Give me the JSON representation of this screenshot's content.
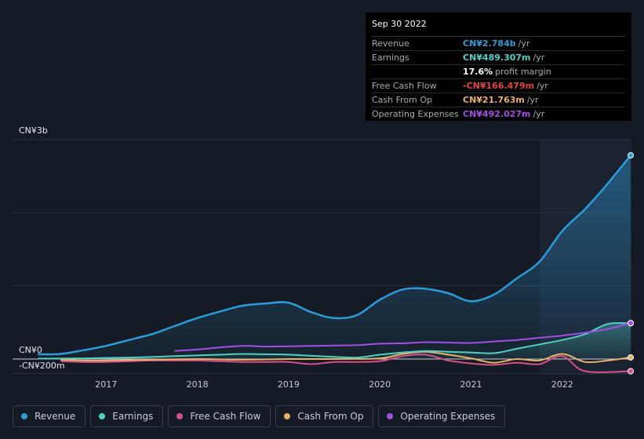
{
  "chart_data": {
    "type": "line",
    "x_tick_labels": [
      "2017",
      "2018",
      "2019",
      "2020",
      "2021",
      "2022"
    ],
    "y_tick_labels": [
      "CN¥3b",
      "CN¥0",
      "-CN¥200m"
    ],
    "ylim": [
      -200,
      3000
    ],
    "y_unit": "CN¥m",
    "legend_position": "bottom",
    "grid": true,
    "series": [
      {
        "name": "Revenue",
        "color": "#2d9cdb",
        "area": true,
        "points": [
          [
            2016.25,
            65
          ],
          [
            2016.5,
            70
          ],
          [
            2016.75,
            120
          ],
          [
            2017.0,
            180
          ],
          [
            2017.25,
            260
          ],
          [
            2017.5,
            340
          ],
          [
            2017.75,
            450
          ],
          [
            2018.0,
            560
          ],
          [
            2018.25,
            650
          ],
          [
            2018.5,
            730
          ],
          [
            2018.75,
            760
          ],
          [
            2019.0,
            770
          ],
          [
            2019.25,
            640
          ],
          [
            2019.5,
            560
          ],
          [
            2019.75,
            600
          ],
          [
            2020.0,
            810
          ],
          [
            2020.25,
            950
          ],
          [
            2020.5,
            960
          ],
          [
            2020.75,
            900
          ],
          [
            2021.0,
            790
          ],
          [
            2021.25,
            880
          ],
          [
            2021.5,
            1100
          ],
          [
            2021.75,
            1330
          ],
          [
            2022.0,
            1750
          ],
          [
            2022.25,
            2050
          ],
          [
            2022.5,
            2400
          ],
          [
            2022.75,
            2784
          ]
        ]
      },
      {
        "name": "Earnings",
        "color": "#4fd1c5",
        "area": true,
        "points": [
          [
            2016.25,
            5
          ],
          [
            2016.75,
            10
          ],
          [
            2017.25,
            20
          ],
          [
            2017.75,
            40
          ],
          [
            2018.25,
            60
          ],
          [
            2018.5,
            70
          ],
          [
            2018.75,
            65
          ],
          [
            2019.0,
            60
          ],
          [
            2019.5,
            30
          ],
          [
            2019.75,
            20
          ],
          [
            2020.0,
            60
          ],
          [
            2020.25,
            90
          ],
          [
            2020.5,
            110
          ],
          [
            2020.75,
            100
          ],
          [
            2021.0,
            90
          ],
          [
            2021.25,
            80
          ],
          [
            2021.5,
            140
          ],
          [
            2021.75,
            200
          ],
          [
            2022.0,
            260
          ],
          [
            2022.25,
            340
          ],
          [
            2022.5,
            480
          ],
          [
            2022.75,
            489
          ]
        ]
      },
      {
        "name": "Free Cash Flow",
        "color": "#d94f8a",
        "points": [
          [
            2016.5,
            -30
          ],
          [
            2016.75,
            -40
          ],
          [
            2017.0,
            -40
          ],
          [
            2017.25,
            -30
          ],
          [
            2017.5,
            -20
          ],
          [
            2017.75,
            -20
          ],
          [
            2018.0,
            -20
          ],
          [
            2018.25,
            -30
          ],
          [
            2018.5,
            -40
          ],
          [
            2018.75,
            -40
          ],
          [
            2019.0,
            -40
          ],
          [
            2019.25,
            -70
          ],
          [
            2019.5,
            -40
          ],
          [
            2019.75,
            -40
          ],
          [
            2020.0,
            -30
          ],
          [
            2020.25,
            40
          ],
          [
            2020.5,
            60
          ],
          [
            2020.75,
            -20
          ],
          [
            2021.0,
            -60
          ],
          [
            2021.25,
            -80
          ],
          [
            2021.5,
            -50
          ],
          [
            2021.75,
            -70
          ],
          [
            2022.0,
            40
          ],
          [
            2022.25,
            -166
          ],
          [
            2022.75,
            -166
          ]
        ]
      },
      {
        "name": "Cash From Op",
        "color": "#e8b06a",
        "points": [
          [
            2016.5,
            -10
          ],
          [
            2016.75,
            -20
          ],
          [
            2017.0,
            -20
          ],
          [
            2017.5,
            -10
          ],
          [
            2018.0,
            0
          ],
          [
            2018.5,
            -10
          ],
          [
            2019.0,
            0
          ],
          [
            2019.5,
            0
          ],
          [
            2020.0,
            10
          ],
          [
            2020.25,
            70
          ],
          [
            2020.5,
            100
          ],
          [
            2020.75,
            60
          ],
          [
            2021.0,
            10
          ],
          [
            2021.25,
            -50
          ],
          [
            2021.5,
            0
          ],
          [
            2021.75,
            -20
          ],
          [
            2022.0,
            70
          ],
          [
            2022.25,
            -40
          ],
          [
            2022.5,
            -20
          ],
          [
            2022.75,
            22
          ]
        ]
      },
      {
        "name": "Operating Expenses",
        "color": "#a34ee6",
        "points": [
          [
            2017.75,
            110
          ],
          [
            2018.0,
            130
          ],
          [
            2018.25,
            160
          ],
          [
            2018.5,
            180
          ],
          [
            2018.75,
            170
          ],
          [
            2019.0,
            175
          ],
          [
            2019.25,
            180
          ],
          [
            2019.5,
            185
          ],
          [
            2019.75,
            190
          ],
          [
            2020.0,
            210
          ],
          [
            2020.25,
            215
          ],
          [
            2020.5,
            230
          ],
          [
            2020.75,
            225
          ],
          [
            2021.0,
            220
          ],
          [
            2021.25,
            240
          ],
          [
            2021.5,
            260
          ],
          [
            2021.75,
            290
          ],
          [
            2022.0,
            320
          ],
          [
            2022.25,
            360
          ],
          [
            2022.5,
            410
          ],
          [
            2022.75,
            492
          ]
        ]
      }
    ]
  },
  "tooltip": {
    "date": "Sep 30 2022",
    "rows": [
      {
        "label": "Revenue",
        "value": "CN¥2.784b",
        "unit": "/yr",
        "color": "#2d9cdb"
      },
      {
        "label": "Earnings",
        "value": "CN¥489.307m",
        "unit": "/yr",
        "color": "#4fd1c5"
      },
      {
        "label": "",
        "value": "17.6%",
        "unit": "profit margin",
        "color": "#ffffff"
      },
      {
        "label": "Free Cash Flow",
        "value": "-CN¥166.479m",
        "unit": "/yr",
        "color": "#e8414d"
      },
      {
        "label": "Cash From Op",
        "value": "CN¥21.763m",
        "unit": "/yr",
        "color": "#e8b06a"
      },
      {
        "label": "Operating Expenses",
        "value": "CN¥492.027m",
        "unit": "/yr",
        "color": "#a34ee6"
      }
    ]
  },
  "legend": [
    {
      "label": "Revenue",
      "color": "#2d9cdb"
    },
    {
      "label": "Earnings",
      "color": "#4fd1c5"
    },
    {
      "label": "Free Cash Flow",
      "color": "#d94f8a"
    },
    {
      "label": "Cash From Op",
      "color": "#e8b06a"
    },
    {
      "label": "Operating Expenses",
      "color": "#a34ee6"
    }
  ]
}
